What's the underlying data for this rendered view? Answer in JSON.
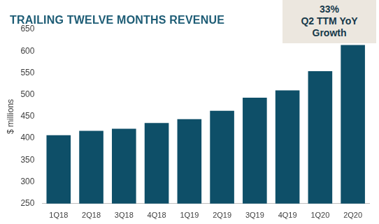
{
  "chart_data": {
    "type": "bar",
    "title": "TRAILING TWELVE MONTHS REVENUE",
    "annotation": [
      "33%",
      "Q2 TTM YoY",
      "Growth"
    ],
    "y_label": "$ millions",
    "categories": [
      "1Q18",
      "2Q18",
      "3Q18",
      "4Q18",
      "1Q19",
      "2Q19",
      "3Q19",
      "4Q19",
      "1Q20",
      "2Q20"
    ],
    "values": [
      407,
      417,
      422,
      435,
      444,
      463,
      493,
      510,
      554,
      614
    ],
    "color": "#0e4f68",
    "ylim": [
      250,
      650
    ],
    "yticks": [
      250,
      300,
      350,
      400,
      450,
      500,
      550,
      600,
      650
    ],
    "grid": false
  }
}
